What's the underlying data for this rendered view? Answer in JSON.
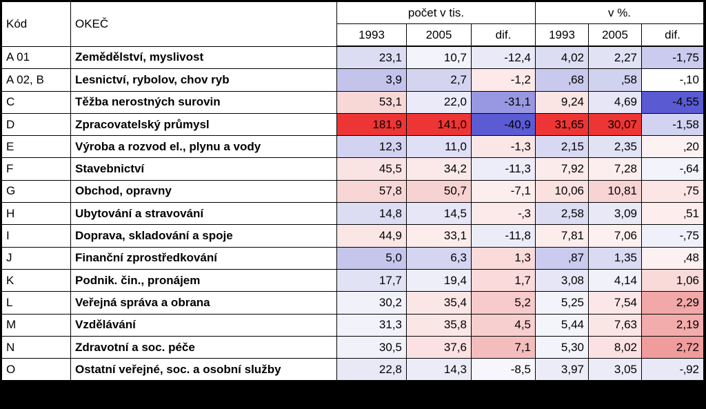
{
  "header": {
    "code": "Kód",
    "okec": "OKEČ",
    "group_count": "počet v tis.",
    "group_pct": "v %.",
    "sub": [
      "1993",
      "2005",
      "dif.",
      "1993",
      "2005",
      "dif."
    ]
  },
  "rows": [
    {
      "code": "A 01",
      "name": "Zemědělství, myslivost",
      "v": [
        "23,1",
        "10,7",
        "-12,4",
        "4,02",
        "2,27",
        "-1,75"
      ],
      "bg": [
        "#dcdcf3",
        "#f3f3fb",
        "#e9e9f8",
        "#dcdcf3",
        "#e2e2f5",
        "#cbcbef"
      ]
    },
    {
      "code": "A 02, B",
      "name": "Lesnictví, rybolov, chov ryb",
      "v": [
        "3,9",
        "2,7",
        "-1,2",
        "‚68",
        "‚58",
        "-‚10"
      ],
      "bg": [
        "#c3c3ec",
        "#d4d4f1",
        "#fde9e9",
        "#c9c9ee",
        "#d1d1f0",
        "#ffffff"
      ]
    },
    {
      "code": "C",
      "name": "Těžba nerostných surovin",
      "v": [
        "53,1",
        "22,0",
        "-31,1",
        "9,24",
        "4,69",
        "-4,55"
      ],
      "bg": [
        "#f8d7d7",
        "#eaeaf8",
        "#9898e2",
        "#fbe4e4",
        "#e6e6f6",
        "#5a5ad2"
      ]
    },
    {
      "code": "D",
      "name": "Zpracovatelský průmysl",
      "v": [
        "181,9",
        "141,0",
        "-40,9",
        "31,65",
        "30,07",
        "-1,58"
      ],
      "bg": [
        "#ee3535",
        "#ee3535",
        "#5b5bd4",
        "#ee3535",
        "#ee3535",
        "#d2d2f1"
      ]
    },
    {
      "code": "E",
      "name": "Výroba a rozvod el., plynu a vody",
      "v": [
        "12,3",
        "11,0",
        "-1,3",
        "2,15",
        "2,35",
        "‚20"
      ],
      "bg": [
        "#d2d2f1",
        "#dfdff5",
        "#fbe6e6",
        "#d8d8f3",
        "#e2e2f5",
        "#fdf2f2"
      ]
    },
    {
      "code": "F",
      "name": "Stavebnictví",
      "v": [
        "45,5",
        "34,2",
        "-11,3",
        "7,92",
        "7,28",
        "-‚64"
      ],
      "bg": [
        "#fae3e3",
        "#fbe9e9",
        "#ededf9",
        "#fcebeb",
        "#fceeee",
        "#f3f3fb"
      ]
    },
    {
      "code": "G",
      "name": "Obchod, opravny",
      "v": [
        "57,8",
        "50,7",
        "-7,1",
        "10,06",
        "10,81",
        "‚75"
      ],
      "bg": [
        "#f9d6d6",
        "#f7d2d2",
        "#fdeeee",
        "#fbe0e0",
        "#f7d3d3",
        "#fce5e5"
      ]
    },
    {
      "code": "H",
      "name": "Ubytování a stravování",
      "v": [
        "14,8",
        "14,5",
        "-‚3",
        "2,58",
        "3,09",
        "‚51"
      ],
      "bg": [
        "#dcdcf3",
        "#e6e6f6",
        "#fce9e9",
        "#dcdcf3",
        "#e8e8f7",
        "#fdeded"
      ]
    },
    {
      "code": "I",
      "name": "Doprava, skladování a spoje",
      "v": [
        "44,9",
        "33,1",
        "-11,8",
        "7,81",
        "7,06",
        "-‚75"
      ],
      "bg": [
        "#fbe6e6",
        "#fcecec",
        "#ececf9",
        "#fcecec",
        "#fdf0f0",
        "#f0f0fa"
      ]
    },
    {
      "code": "J",
      "name": "Finanční zprostředkování",
      "v": [
        "5,0",
        "6,3",
        "1,3",
        "‚87",
        "1,35",
        "‚48"
      ],
      "bg": [
        "#c6c6ed",
        "#d5d5f2",
        "#fbdada",
        "#cbcbef",
        "#dadaf3",
        "#fdf0f0"
      ]
    },
    {
      "code": "K",
      "name": "Podnik. čin., pronájem",
      "v": [
        "17,7",
        "19,4",
        "1,7",
        "3,08",
        "4,14",
        "1,06"
      ],
      "bg": [
        "#e2e2f5",
        "#eeeef9",
        "#fadada",
        "#e6e6f6",
        "#f1f1fa",
        "#fad9d9"
      ]
    },
    {
      "code": "L",
      "name": "Veřejná správa a obrana",
      "v": [
        "30,2",
        "35,4",
        "5,2",
        "5,25",
        "7,54",
        "2,29"
      ],
      "bg": [
        "#f1f1fa",
        "#fbe6e6",
        "#f7cbcb",
        "#f3f3fb",
        "#fbe7e7",
        "#f2a8a8"
      ]
    },
    {
      "code": "M",
      "name": "Vzdělávání",
      "v": [
        "31,3",
        "35,8",
        "4,5",
        "5,44",
        "7,63",
        "2,19"
      ],
      "bg": [
        "#f2f2fa",
        "#fbe6e6",
        "#f8cfcf",
        "#f4f4fb",
        "#fbe6e6",
        "#f3acac"
      ]
    },
    {
      "code": "N",
      "name": "Zdravotní a soc. péče",
      "v": [
        "30,5",
        "37,6",
        "7,1",
        "5,30",
        "8,02",
        "2,72"
      ],
      "bg": [
        "#f1f1fa",
        "#fbe1e1",
        "#f4bdbd",
        "#f3f3fb",
        "#fbe1e1",
        "#f09c9c"
      ]
    },
    {
      "code": "O",
      "name": "Ostatní veřejné, soc. a osobní služby",
      "v": [
        "22,8",
        "14,3",
        "-8,5",
        "3,97",
        "3,05",
        "-‚92"
      ],
      "bg": [
        "#e8e8f7",
        "#ececf9",
        "#f6f6fc",
        "#ececf9",
        "#ececf9",
        "#e8e8f7"
      ]
    }
  ]
}
